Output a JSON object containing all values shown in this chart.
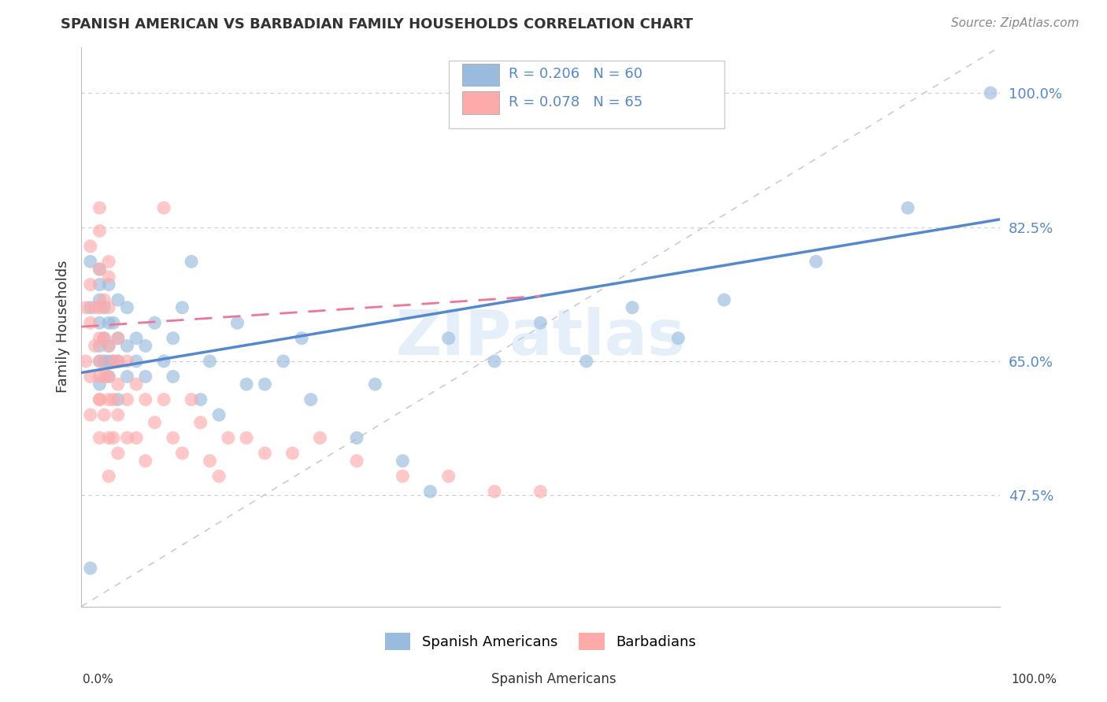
{
  "title": "SPANISH AMERICAN VS BARBADIAN FAMILY HOUSEHOLDS CORRELATION CHART",
  "source": "Source: ZipAtlas.com",
  "ylabel": "Family Households",
  "ytick_labels": [
    "47.5%",
    "65.0%",
    "82.5%",
    "100.0%"
  ],
  "ytick_values": [
    0.475,
    0.65,
    0.825,
    1.0
  ],
  "xlim": [
    0.0,
    1.0
  ],
  "ylim": [
    0.33,
    1.06
  ],
  "blue_color": "#99BBDD",
  "pink_color": "#FFAAAA",
  "blue_line_color": "#5588CC",
  "pink_line_color": "#EE7799",
  "grid_color": "#CCCCCC",
  "dashed_diag_color": "#CCCCCC",
  "watermark_color": "#AACCEE",
  "watermark": "ZIPatlas",
  "legend_r1": "R = 0.206",
  "legend_n1": "N = 60",
  "legend_r2": "R = 0.078",
  "legend_n2": "N = 65",
  "blue_line_x0": 0.0,
  "blue_line_y0": 0.635,
  "blue_line_x1": 1.0,
  "blue_line_y1": 0.835,
  "pink_line_x0": 0.0,
  "pink_line_y0": 0.695,
  "pink_line_x1": 0.5,
  "pink_line_y1": 0.735,
  "blue_scatter_x": [
    0.01,
    0.01,
    0.01,
    0.02,
    0.02,
    0.02,
    0.02,
    0.02,
    0.02,
    0.02,
    0.025,
    0.025,
    0.025,
    0.03,
    0.03,
    0.03,
    0.03,
    0.03,
    0.035,
    0.035,
    0.04,
    0.04,
    0.04,
    0.04,
    0.05,
    0.05,
    0.05,
    0.06,
    0.06,
    0.07,
    0.07,
    0.08,
    0.09,
    0.1,
    0.1,
    0.11,
    0.12,
    0.13,
    0.14,
    0.15,
    0.17,
    0.18,
    0.2,
    0.22,
    0.24,
    0.25,
    0.3,
    0.32,
    0.35,
    0.38,
    0.4,
    0.45,
    0.5,
    0.55,
    0.6,
    0.65,
    0.7,
    0.8,
    0.9,
    0.99
  ],
  "blue_scatter_y": [
    0.38,
    0.72,
    0.78,
    0.62,
    0.65,
    0.67,
    0.7,
    0.73,
    0.75,
    0.77,
    0.65,
    0.68,
    0.72,
    0.63,
    0.65,
    0.67,
    0.7,
    0.75,
    0.65,
    0.7,
    0.6,
    0.65,
    0.68,
    0.73,
    0.63,
    0.67,
    0.72,
    0.65,
    0.68,
    0.63,
    0.67,
    0.7,
    0.65,
    0.63,
    0.68,
    0.72,
    0.78,
    0.6,
    0.65,
    0.58,
    0.7,
    0.62,
    0.62,
    0.65,
    0.68,
    0.6,
    0.55,
    0.62,
    0.52,
    0.48,
    0.68,
    0.65,
    0.7,
    0.65,
    0.72,
    0.68,
    0.73,
    0.78,
    0.85,
    1.0
  ],
  "pink_scatter_x": [
    0.005,
    0.005,
    0.01,
    0.01,
    0.01,
    0.01,
    0.01,
    0.015,
    0.015,
    0.02,
    0.02,
    0.02,
    0.02,
    0.02,
    0.02,
    0.02,
    0.02,
    0.025,
    0.025,
    0.025,
    0.025,
    0.03,
    0.03,
    0.03,
    0.03,
    0.03,
    0.03,
    0.035,
    0.035,
    0.035,
    0.04,
    0.04,
    0.04,
    0.04,
    0.04,
    0.05,
    0.05,
    0.05,
    0.06,
    0.06,
    0.07,
    0.07,
    0.08,
    0.09,
    0.1,
    0.11,
    0.12,
    0.13,
    0.14,
    0.15,
    0.16,
    0.18,
    0.2,
    0.23,
    0.26,
    0.3,
    0.35,
    0.4,
    0.45,
    0.5,
    0.09,
    0.03,
    0.02,
    0.02,
    0.03
  ],
  "pink_scatter_y": [
    0.65,
    0.72,
    0.58,
    0.63,
    0.7,
    0.75,
    0.8,
    0.67,
    0.72,
    0.55,
    0.6,
    0.63,
    0.65,
    0.68,
    0.72,
    0.77,
    0.82,
    0.58,
    0.63,
    0.68,
    0.73,
    0.55,
    0.6,
    0.63,
    0.67,
    0.72,
    0.76,
    0.55,
    0.6,
    0.65,
    0.53,
    0.58,
    0.62,
    0.65,
    0.68,
    0.55,
    0.6,
    0.65,
    0.55,
    0.62,
    0.52,
    0.6,
    0.57,
    0.6,
    0.55,
    0.53,
    0.6,
    0.57,
    0.52,
    0.5,
    0.55,
    0.55,
    0.53,
    0.53,
    0.55,
    0.52,
    0.5,
    0.5,
    0.48,
    0.48,
    0.85,
    0.78,
    0.85,
    0.6,
    0.5
  ]
}
